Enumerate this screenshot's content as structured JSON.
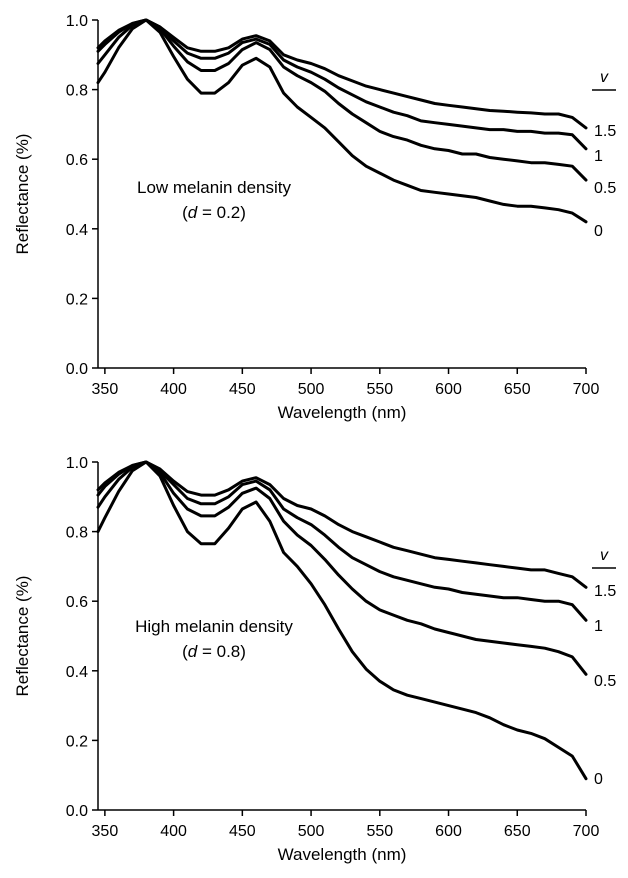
{
  "chart_data": [
    {
      "type": "line",
      "xlabel": "Wavelength (nm)",
      "ylabel": "Reflectance (%)",
      "xlim": [
        345,
        700
      ],
      "ylim": [
        0,
        1.0
      ],
      "xticks": [
        350,
        400,
        450,
        500,
        550,
        600,
        650,
        700
      ],
      "yticks": [
        0.0,
        0.2,
        0.4,
        0.6,
        0.8,
        1.0
      ],
      "annotation": [
        "Low melanin density",
        "(d = 0.2)"
      ],
      "legend_title": "v",
      "grid": false,
      "x": [
        345,
        350,
        360,
        370,
        380,
        390,
        400,
        410,
        420,
        430,
        440,
        450,
        460,
        470,
        480,
        490,
        500,
        510,
        520,
        530,
        540,
        550,
        560,
        570,
        580,
        590,
        600,
        610,
        620,
        630,
        640,
        650,
        660,
        670,
        680,
        690,
        700
      ],
      "series": [
        {
          "name": "1.5",
          "values": [
            0.92,
            0.94,
            0.97,
            0.99,
            1.0,
            0.98,
            0.95,
            0.92,
            0.91,
            0.91,
            0.92,
            0.945,
            0.955,
            0.94,
            0.9,
            0.885,
            0.875,
            0.86,
            0.84,
            0.825,
            0.81,
            0.8,
            0.79,
            0.78,
            0.77,
            0.76,
            0.755,
            0.75,
            0.745,
            0.74,
            0.738,
            0.735,
            0.733,
            0.73,
            0.73,
            0.72,
            0.69
          ]
        },
        {
          "name": "1",
          "values": [
            0.91,
            0.93,
            0.965,
            0.99,
            1.0,
            0.98,
            0.94,
            0.905,
            0.89,
            0.89,
            0.905,
            0.935,
            0.945,
            0.93,
            0.885,
            0.865,
            0.85,
            0.83,
            0.805,
            0.785,
            0.765,
            0.75,
            0.735,
            0.725,
            0.71,
            0.705,
            0.7,
            0.695,
            0.69,
            0.685,
            0.685,
            0.68,
            0.68,
            0.675,
            0.675,
            0.67,
            0.63
          ]
        },
        {
          "name": "0.5",
          "values": [
            0.875,
            0.9,
            0.95,
            0.985,
            1.0,
            0.975,
            0.925,
            0.88,
            0.855,
            0.855,
            0.875,
            0.915,
            0.935,
            0.915,
            0.865,
            0.84,
            0.82,
            0.795,
            0.76,
            0.73,
            0.705,
            0.68,
            0.665,
            0.655,
            0.64,
            0.63,
            0.625,
            0.615,
            0.615,
            0.605,
            0.6,
            0.595,
            0.59,
            0.59,
            0.585,
            0.58,
            0.54
          ]
        },
        {
          "name": "0",
          "values": [
            0.82,
            0.85,
            0.92,
            0.975,
            1.0,
            0.965,
            0.895,
            0.83,
            0.79,
            0.79,
            0.82,
            0.87,
            0.89,
            0.865,
            0.79,
            0.75,
            0.72,
            0.69,
            0.65,
            0.61,
            0.58,
            0.56,
            0.54,
            0.525,
            0.51,
            0.505,
            0.5,
            0.495,
            0.49,
            0.48,
            0.47,
            0.465,
            0.465,
            0.46,
            0.455,
            0.445,
            0.42
          ]
        }
      ]
    },
    {
      "type": "line",
      "xlabel": "Wavelength (nm)",
      "ylabel": "Reflectance (%)",
      "xlim": [
        345,
        700
      ],
      "ylim": [
        0,
        1.0
      ],
      "xticks": [
        350,
        400,
        450,
        500,
        550,
        600,
        650,
        700
      ],
      "yticks": [
        0.0,
        0.2,
        0.4,
        0.6,
        0.8,
        1.0
      ],
      "annotation": [
        "High melanin density",
        "(d = 0.8)"
      ],
      "legend_title": "v",
      "grid": false,
      "x": [
        345,
        350,
        360,
        370,
        380,
        390,
        400,
        410,
        420,
        430,
        440,
        450,
        460,
        470,
        480,
        490,
        500,
        510,
        520,
        530,
        540,
        550,
        560,
        570,
        580,
        590,
        600,
        610,
        620,
        630,
        640,
        650,
        660,
        670,
        680,
        690,
        700
      ],
      "series": [
        {
          "name": "1.5",
          "values": [
            0.92,
            0.94,
            0.97,
            0.99,
            1.0,
            0.98,
            0.945,
            0.915,
            0.905,
            0.905,
            0.92,
            0.945,
            0.955,
            0.935,
            0.895,
            0.875,
            0.865,
            0.845,
            0.82,
            0.8,
            0.785,
            0.77,
            0.755,
            0.745,
            0.735,
            0.725,
            0.72,
            0.715,
            0.71,
            0.705,
            0.7,
            0.695,
            0.69,
            0.69,
            0.68,
            0.67,
            0.64
          ]
        },
        {
          "name": "1",
          "values": [
            0.905,
            0.93,
            0.965,
            0.99,
            1.0,
            0.975,
            0.935,
            0.895,
            0.88,
            0.88,
            0.9,
            0.935,
            0.945,
            0.92,
            0.865,
            0.84,
            0.82,
            0.79,
            0.755,
            0.725,
            0.705,
            0.685,
            0.67,
            0.66,
            0.65,
            0.64,
            0.635,
            0.625,
            0.62,
            0.615,
            0.61,
            0.61,
            0.605,
            0.6,
            0.6,
            0.59,
            0.545
          ]
        },
        {
          "name": "0.5",
          "values": [
            0.87,
            0.9,
            0.95,
            0.985,
            1.0,
            0.97,
            0.91,
            0.865,
            0.845,
            0.845,
            0.87,
            0.91,
            0.925,
            0.895,
            0.83,
            0.79,
            0.76,
            0.72,
            0.675,
            0.635,
            0.6,
            0.575,
            0.56,
            0.545,
            0.535,
            0.52,
            0.51,
            0.5,
            0.49,
            0.485,
            0.48,
            0.475,
            0.47,
            0.465,
            0.455,
            0.44,
            0.39
          ]
        },
        {
          "name": "0",
          "values": [
            0.8,
            0.84,
            0.915,
            0.975,
            1.0,
            0.96,
            0.875,
            0.8,
            0.765,
            0.765,
            0.81,
            0.865,
            0.885,
            0.83,
            0.74,
            0.7,
            0.65,
            0.59,
            0.52,
            0.455,
            0.405,
            0.37,
            0.345,
            0.33,
            0.32,
            0.31,
            0.3,
            0.29,
            0.28,
            0.265,
            0.245,
            0.23,
            0.22,
            0.205,
            0.18,
            0.155,
            0.09
          ]
        }
      ]
    }
  ]
}
